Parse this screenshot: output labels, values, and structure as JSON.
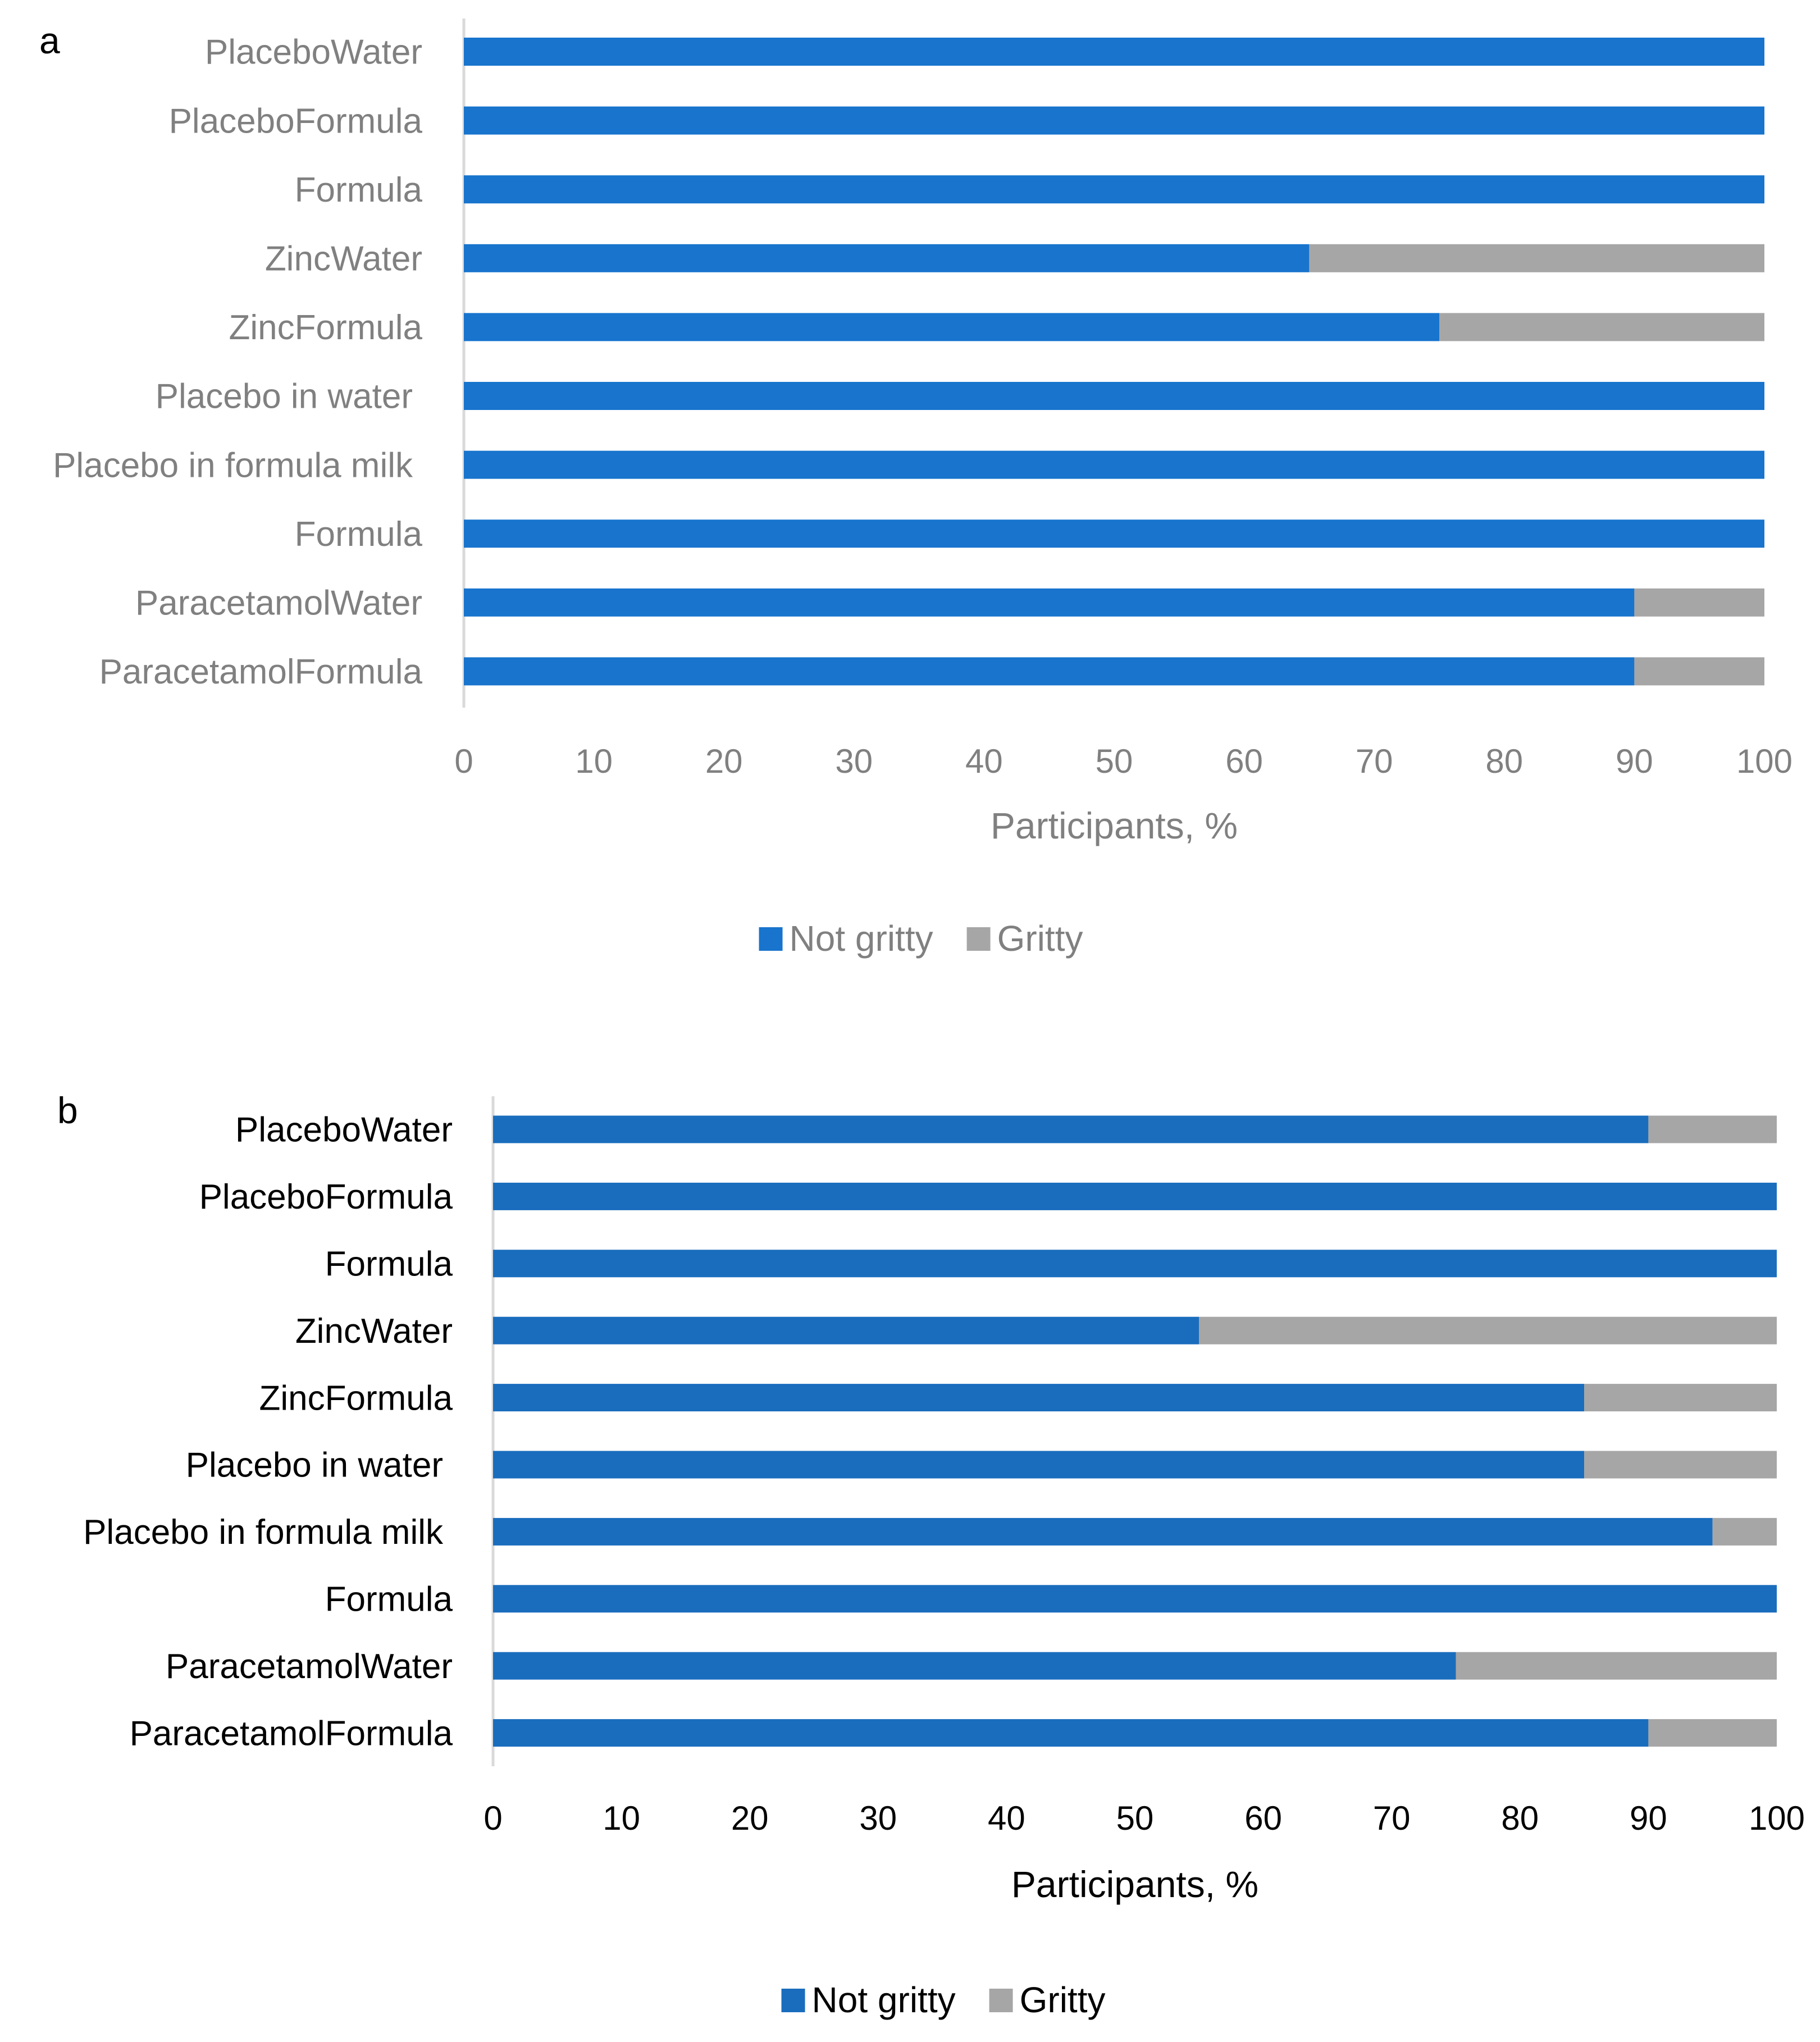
{
  "chart_data": [
    {
      "panel_label": "a",
      "type": "bar",
      "orientation": "horizontal",
      "stacked": true,
      "categories": [
        "PlaceboWater",
        "PlaceboFormula",
        "Formula",
        "ZincWater",
        "ZincFormula",
        "Placebo in water",
        "Placebo in formula milk",
        "Formula",
        "ParacetamolWater",
        "ParacetamolFormula"
      ],
      "series": [
        {
          "name": "Not gritty",
          "color": "#1874cd",
          "values": [
            100,
            100,
            100,
            65,
            75,
            100,
            100,
            100,
            90,
            90
          ]
        },
        {
          "name": "Gritty",
          "color": "#a6a6a6",
          "values": [
            0,
            0,
            0,
            35,
            25,
            0,
            0,
            0,
            10,
            10
          ]
        }
      ],
      "xlabel": "Participants, %",
      "ylabel": "",
      "xlim": [
        0,
        100
      ],
      "xticks": [
        "0",
        "10",
        "20",
        "30",
        "40",
        "50",
        "60",
        "70",
        "80",
        "90",
        "100"
      ],
      "legend": [
        "Not gritty",
        "Gritty"
      ],
      "legend_position": "bottom",
      "text_color": "#808080"
    },
    {
      "panel_label": "b",
      "type": "bar",
      "orientation": "horizontal",
      "stacked": true,
      "categories": [
        "PlaceboWater",
        "PlaceboFormula",
        "Formula",
        "ZincWater",
        "ZincFormula",
        "Placebo in water",
        "Placebo in formula milk",
        "Formula",
        "ParacetamolWater",
        "ParacetamolFormula"
      ],
      "series": [
        {
          "name": "Not gritty",
          "color": "#1a6dbd",
          "values": [
            90,
            100,
            100,
            55,
            85,
            85,
            95,
            100,
            75,
            90
          ]
        },
        {
          "name": "Gritty",
          "color": "#a6a6a6",
          "values": [
            10,
            0,
            0,
            45,
            15,
            15,
            5,
            0,
            25,
            10
          ]
        }
      ],
      "xlabel": "Participants, %",
      "ylabel": "",
      "xlim": [
        0,
        100
      ],
      "xticks": [
        "0",
        "10",
        "20",
        "30",
        "40",
        "50",
        "60",
        "70",
        "80",
        "90",
        "100"
      ],
      "legend": [
        "Not gritty",
        "Gritty"
      ],
      "legend_position": "bottom",
      "text_color": "#000000"
    }
  ]
}
